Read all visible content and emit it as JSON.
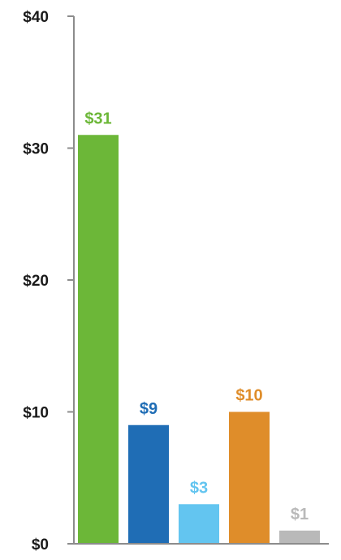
{
  "chart_data": {
    "type": "bar",
    "categories": [
      "",
      "",
      "",
      "",
      ""
    ],
    "values": [
      31,
      9,
      3,
      10,
      1
    ],
    "data_labels": [
      "$31",
      "$9",
      "$3",
      "$10",
      "$1"
    ],
    "colors": [
      "#6cb738",
      "#1f6db5",
      "#63c5f0",
      "#df8d2a",
      "#b9b9b9"
    ],
    "ylim": [
      0,
      40
    ],
    "yticks": [
      0,
      10,
      20,
      30,
      40
    ],
    "ytick_labels": [
      "$0",
      "$10",
      "$20",
      "$30",
      "$40"
    ],
    "axis_color": "#8c8c8c",
    "grid": false,
    "legend": "none"
  }
}
